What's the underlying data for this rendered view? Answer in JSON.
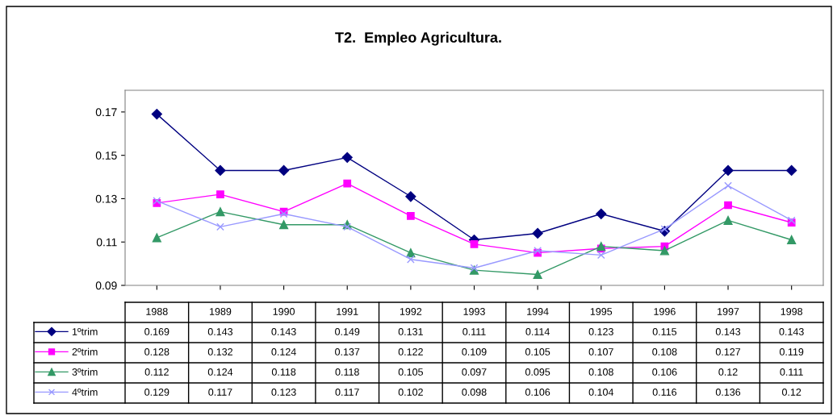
{
  "chart_data": {
    "type": "line",
    "title": "T2.  Empleo Agricultura.",
    "categories": [
      "1988",
      "1989",
      "1990",
      "1991",
      "1992",
      "1993",
      "1994",
      "1995",
      "1996",
      "1997",
      "1998"
    ],
    "series": [
      {
        "name": "1ºtrim",
        "color": "#000080",
        "marker": "diamond",
        "values": [
          0.169,
          0.143,
          0.143,
          0.149,
          0.131,
          0.111,
          0.114,
          0.123,
          0.115,
          0.143,
          0.143
        ]
      },
      {
        "name": "2ºtrim",
        "color": "#ff00ff",
        "marker": "square",
        "values": [
          0.128,
          0.132,
          0.124,
          0.137,
          0.122,
          0.109,
          0.105,
          0.107,
          0.108,
          0.127,
          0.119
        ]
      },
      {
        "name": "3ºtrim",
        "color": "#339966",
        "marker": "triangle",
        "values": [
          0.112,
          0.124,
          0.118,
          0.118,
          0.105,
          0.097,
          0.095,
          0.108,
          0.106,
          0.12,
          0.111
        ]
      },
      {
        "name": "4ºtrim",
        "color": "#9999ff",
        "marker": "cross",
        "values": [
          0.129,
          0.117,
          0.123,
          0.117,
          0.102,
          0.098,
          0.106,
          0.104,
          0.116,
          0.136,
          0.12
        ]
      }
    ],
    "ylim": [
      0.09,
      0.18
    ],
    "yticks": [
      0.09,
      0.11,
      0.13,
      0.15,
      0.17
    ],
    "grid": false,
    "legend": "bottom",
    "data_labels": true
  }
}
